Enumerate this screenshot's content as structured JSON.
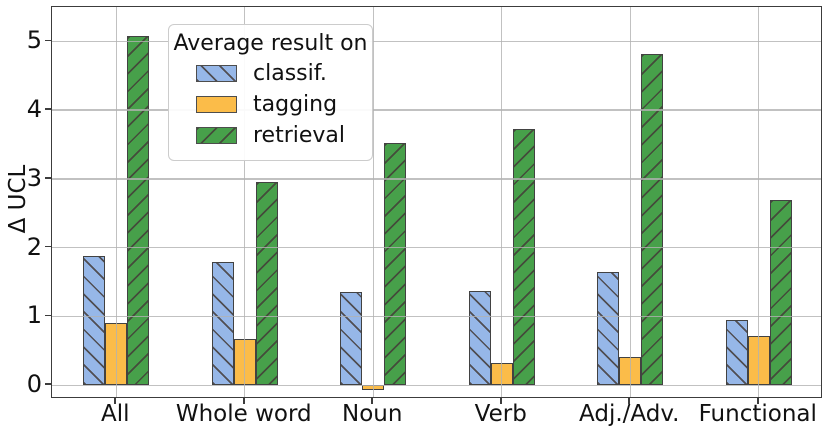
{
  "chart_data": {
    "type": "bar",
    "title": "",
    "legend_title": "Average result on",
    "legend_position": "upper-left",
    "grid": true,
    "grid_above_bars": true,
    "xlabel": "",
    "ylabel": "Δ UCL",
    "ylim": [
      -0.2,
      5.5
    ],
    "yticks": [
      0,
      1,
      2,
      3,
      4,
      5
    ],
    "categories": [
      "All",
      "Whole word",
      "Noun",
      "Verb",
      "Adj./Adv.",
      "Functional"
    ],
    "series": [
      {
        "name": "classif.",
        "color": "#96b7e8",
        "hatch": "\\",
        "values": [
          1.88,
          1.79,
          1.35,
          1.37,
          1.64,
          0.95
        ]
      },
      {
        "name": "tagging",
        "color": "#fbbc49",
        "hatch": "",
        "values": [
          0.9,
          0.67,
          -0.07,
          0.33,
          0.41,
          0.71
        ]
      },
      {
        "name": "retrieval",
        "color": "#47a04a",
        "hatch": "/",
        "values": [
          5.08,
          2.96,
          3.52,
          3.73,
          4.81,
          2.7
        ]
      }
    ],
    "colors": {
      "bar_edge": "#424242",
      "hatch_line": "rgba(68,60,56,0.85)",
      "gridline": "#b2b2b2",
      "spine": "#3c3c3c",
      "text": "#111111",
      "legend_border": "#cccccc"
    }
  }
}
